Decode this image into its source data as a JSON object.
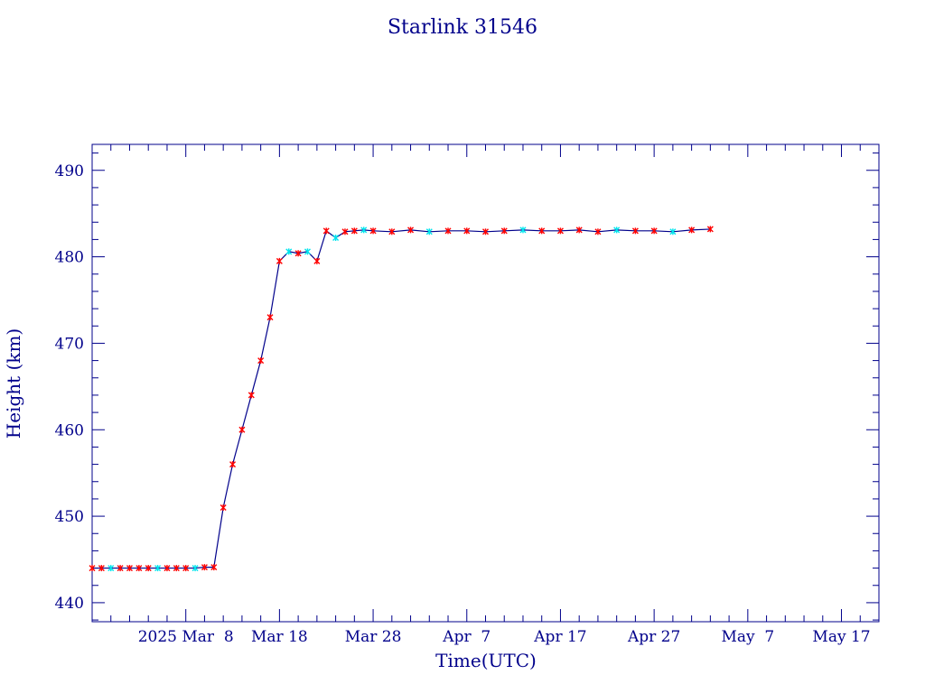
{
  "chart_data": {
    "type": "line",
    "title": "Starlink 31546",
    "xlabel": "Time(UTC)",
    "ylabel": "Height (km)",
    "x_tick_labels": [
      "2025 Mar  8",
      "Mar 18",
      "Mar 28",
      "Apr  7",
      "Apr 17",
      "Apr 27",
      "May  7",
      "May 17"
    ],
    "x_tick_dates": [
      "2025-03-08",
      "2025-03-18",
      "2025-03-28",
      "2025-04-07",
      "2025-04-17",
      "2025-04-27",
      "2025-05-07",
      "2025-05-17"
    ],
    "y_tick_labels": [
      "440",
      "450",
      "460",
      "470",
      "480",
      "490"
    ],
    "xlim": [
      "2025-02-26",
      "2025-05-21"
    ],
    "ylim": [
      437.8,
      493
    ],
    "grid": false,
    "colors": {
      "axes": "#00008b",
      "line": "#00008b",
      "marker_primary": "#ff0000",
      "marker_secondary": "#00e5ee"
    },
    "series": [
      {
        "x": [
          "2025-02-26",
          "2025-02-27",
          "2025-02-28",
          "2025-03-01",
          "2025-03-02",
          "2025-03-03",
          "2025-03-04",
          "2025-03-05",
          "2025-03-06",
          "2025-03-07",
          "2025-03-08",
          "2025-03-09",
          "2025-03-10",
          "2025-03-11",
          "2025-03-12",
          "2025-03-13",
          "2025-03-14",
          "2025-03-15",
          "2025-03-16",
          "2025-03-17",
          "2025-03-18",
          "2025-03-19",
          "2025-03-20",
          "2025-03-21",
          "2025-03-22",
          "2025-03-23",
          "2025-03-24",
          "2025-03-25",
          "2025-03-26",
          "2025-03-27",
          "2025-03-28",
          "2025-03-30",
          "2025-04-01",
          "2025-04-03",
          "2025-04-05",
          "2025-04-07",
          "2025-04-09",
          "2025-04-11",
          "2025-04-13",
          "2025-04-15",
          "2025-04-17",
          "2025-04-19",
          "2025-04-21",
          "2025-04-23",
          "2025-04-25",
          "2025-04-27",
          "2025-04-29",
          "2025-05-01",
          "2025-05-03"
        ],
        "y": [
          444.0,
          444.0,
          444.0,
          444.0,
          444.0,
          444.0,
          444.0,
          444.0,
          444.0,
          444.0,
          444.0,
          444.0,
          444.1,
          444.1,
          451.0,
          456.0,
          460.0,
          464.0,
          468.0,
          473.0,
          479.5,
          480.6,
          480.4,
          480.6,
          479.5,
          483.0,
          482.2,
          482.9,
          483.0,
          483.1,
          483.0,
          482.9,
          483.1,
          482.9,
          483.0,
          483.0,
          482.9,
          483.0,
          483.1,
          483.0,
          483.0,
          483.1,
          482.9,
          483.1,
          483.0,
          483.0,
          482.9,
          483.1,
          483.2
        ],
        "marker_colors": [
          "red",
          "red",
          "cyan",
          "red",
          "red",
          "red",
          "red",
          "cyan",
          "red",
          "red",
          "red",
          "cyan",
          "red",
          "red",
          "red",
          "red",
          "red",
          "red",
          "red",
          "red",
          "red",
          "cyan",
          "red",
          "cyan",
          "red",
          "red",
          "cyan",
          "red",
          "red",
          "cyan",
          "red",
          "red",
          "red",
          "cyan",
          "red",
          "red",
          "red",
          "red",
          "cyan",
          "red",
          "red",
          "red",
          "red",
          "cyan",
          "red",
          "red",
          "cyan",
          "red",
          "red"
        ]
      }
    ]
  }
}
